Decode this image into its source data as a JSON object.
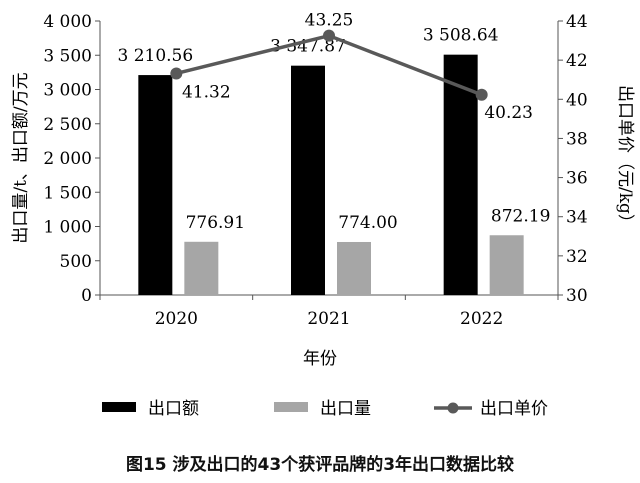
{
  "chart_data": {
    "type": "bar",
    "categories": [
      "2020",
      "2021",
      "2022"
    ],
    "xlabel": "年份",
    "ylabel": "出口量/t、出口额/万元",
    "y2label": "出口单价（元/kg）",
    "ylim": [
      0,
      4000
    ],
    "y2lim": [
      30,
      44
    ],
    "yticks": [
      "0",
      "500",
      "1 000",
      "1 500",
      "2 000",
      "2 500",
      "3 000",
      "3 500",
      "4 000"
    ],
    "y2ticks": [
      "30",
      "32",
      "34",
      "36",
      "38",
      "40",
      "42",
      "44"
    ],
    "grid": false,
    "legend": "bottom",
    "series": [
      {
        "name": "出口额",
        "kind": "bar",
        "axis": "left",
        "color": "#000000",
        "values": [
          3210.56,
          3347.87,
          3508.64
        ],
        "labels": [
          "3 210.56",
          "3 347.87",
          "3 508.64"
        ]
      },
      {
        "name": "出口量",
        "kind": "bar",
        "axis": "left",
        "color": "#a6a6a6",
        "values": [
          776.91,
          774.0,
          872.19
        ],
        "labels": [
          "776.91",
          "774.00",
          "872.19"
        ]
      },
      {
        "name": "出口单价",
        "kind": "line",
        "axis": "right",
        "color": "#595959",
        "values": [
          41.32,
          43.25,
          40.23
        ],
        "labels": [
          "41.32",
          "43.25",
          "40.23"
        ]
      }
    ]
  },
  "caption": "图15  涉及出口的43个获评品牌的3年出口数据比较"
}
